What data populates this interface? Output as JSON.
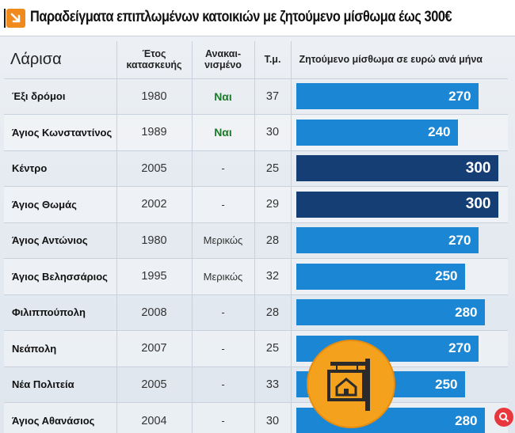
{
  "title": "Παραδείγματα επιπλωμένων κατοικιών με ζητούμενο μίσθωμα έως 300€",
  "header": {
    "city": "Λάρισα",
    "year": "Έτος κατασκευής",
    "renovated": "Ανακαι-νισμένο",
    "sqm": "Τ.μ.",
    "rent": "Ζητούμενο μίσθωμα σε ευρώ ανά μήνα"
  },
  "colors": {
    "bar": "#1b86d3",
    "bar_max": "#143e74",
    "accent": "#f08a1c",
    "yes_text": "#1a7a2a"
  },
  "chart_data": {
    "type": "bar",
    "title": "Παραδείγματα επιπλωμένων κατοικιών με ζητούμενο μίσθωμα έως 300€",
    "categories": [
      "Έξι δρόμοι",
      "Άγιος Κωνσταντίνος",
      "Κέντρο",
      "Άγιος Θωμάς",
      "Άγιος Αντώνιος",
      "Άγιος Βελησσάριος",
      "Φιλιππούπολη",
      "Νεάπολη",
      "Νέα Πολιτεία",
      "Άγιος Αθανάσιος"
    ],
    "values": [
      270,
      240,
      300,
      300,
      270,
      250,
      280,
      270,
      250,
      280
    ],
    "ylabel": "Ζητούμενο μίσθωμα σε ευρώ ανά μήνα",
    "xlim": [
      0,
      300
    ],
    "rows": [
      {
        "name": "Έξι δρόμοι",
        "year": "1980",
        "renovated": "Ναι",
        "sqm": "37",
        "rent": "270"
      },
      {
        "name": "Άγιος Κωνσταντίνος",
        "year": "1989",
        "renovated": "Ναι",
        "sqm": "30",
        "rent": "240"
      },
      {
        "name": "Κέντρο",
        "year": "2005",
        "renovated": "-",
        "sqm": "25",
        "rent": "300"
      },
      {
        "name": "Άγιος Θωμάς",
        "year": "2002",
        "renovated": "-",
        "sqm": "29",
        "rent": "300"
      },
      {
        "name": "Άγιος Αντώνιος",
        "year": "1980",
        "renovated": "Μερικώς",
        "sqm": "28",
        "rent": "270"
      },
      {
        "name": "Άγιος Βελησσάριος",
        "year": "1995",
        "renovated": "Μερικώς",
        "sqm": "32",
        "rent": "250"
      },
      {
        "name": "Φιλιππούπολη",
        "year": "2008",
        "renovated": "-",
        "sqm": "28",
        "rent": "280"
      },
      {
        "name": "Νεάπολη",
        "year": "2007",
        "renovated": "-",
        "sqm": "25",
        "rent": "270"
      },
      {
        "name": "Νέα Πολιτεία",
        "year": "2005",
        "renovated": "-",
        "sqm": "33",
        "rent": "250"
      },
      {
        "name": "Άγιος Αθανάσιος",
        "year": "2004",
        "renovated": "-",
        "sqm": "30",
        "rent": "280"
      }
    ]
  }
}
